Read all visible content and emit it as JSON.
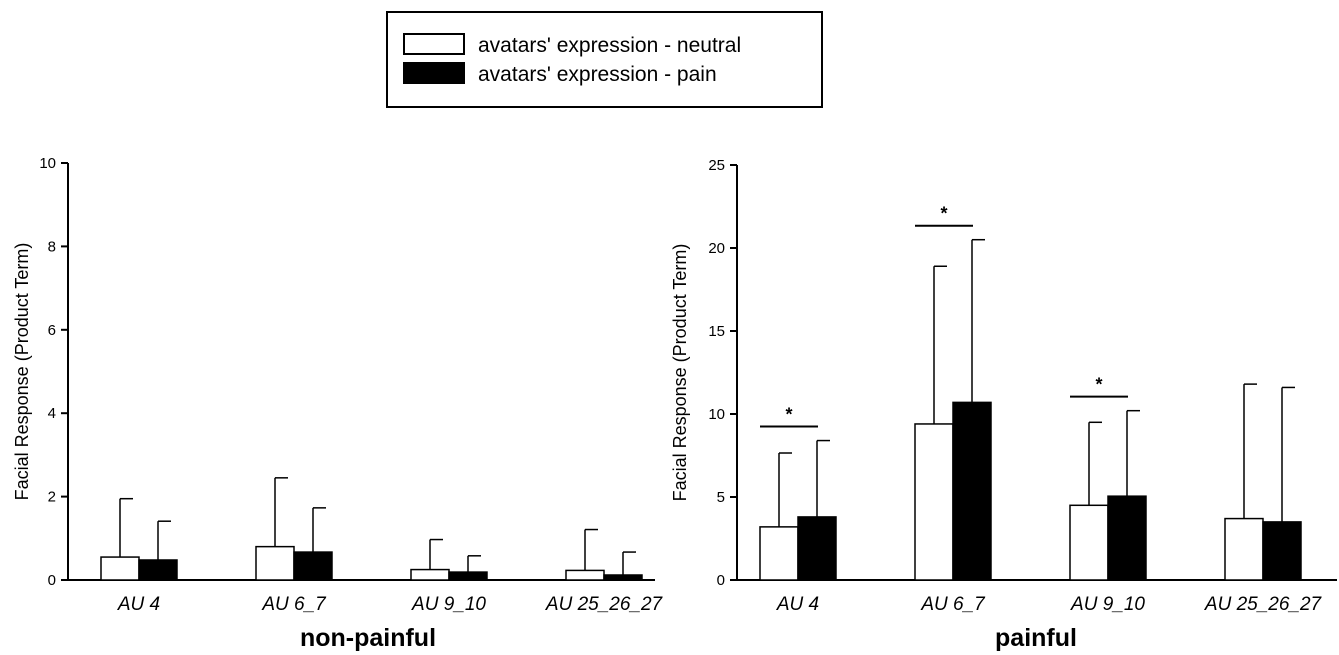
{
  "legend": [
    {
      "label": "avatars' expression - neutral",
      "fill": "#ffffff"
    },
    {
      "label": "avatars' expression - pain",
      "fill": "#000000"
    }
  ],
  "chart_data": [
    {
      "type": "bar",
      "title": "non-painful",
      "ylabel": "Facial Response (Product Term)",
      "ylim": [
        0,
        10
      ],
      "yticks": [
        "0",
        "2",
        "4",
        "6",
        "8",
        "10"
      ],
      "categories": [
        "AU 4",
        "AU 6_7",
        "AU 9_10",
        "AU 25_26_27"
      ],
      "series": [
        {
          "name": "avatars' expression - neutral",
          "values": [
            0.55,
            0.8,
            0.25,
            0.23
          ],
          "error_upper": [
            1.4,
            1.65,
            0.72,
            0.98
          ]
        },
        {
          "name": "avatars' expression - pain",
          "values": [
            0.48,
            0.67,
            0.19,
            0.12
          ],
          "error_upper": [
            0.93,
            1.06,
            0.39,
            0.55
          ]
        }
      ],
      "significance": []
    },
    {
      "type": "bar",
      "title": "painful",
      "ylabel": "Facial Response (Product Term)",
      "ylim": [
        0,
        25
      ],
      "yticks": [
        "0",
        "5",
        "10",
        "15",
        "20",
        "25"
      ],
      "categories": [
        "AU 4",
        "AU 6_7",
        "AU 9_10",
        "AU 25_26_27"
      ],
      "series": [
        {
          "name": "avatars' expression - neutral",
          "values": [
            3.2,
            9.4,
            4.5,
            3.7
          ],
          "error_upper": [
            4.45,
            9.5,
            5.0,
            8.1
          ]
        },
        {
          "name": "avatars' expression - pain",
          "values": [
            3.8,
            10.7,
            5.05,
            3.5
          ],
          "error_upper": [
            4.6,
            9.8,
            5.15,
            8.1
          ]
        }
      ],
      "significance": [
        {
          "category_index": 0,
          "label": "*"
        },
        {
          "category_index": 1,
          "label": "*"
        },
        {
          "category_index": 2,
          "label": "*"
        }
      ]
    }
  ]
}
